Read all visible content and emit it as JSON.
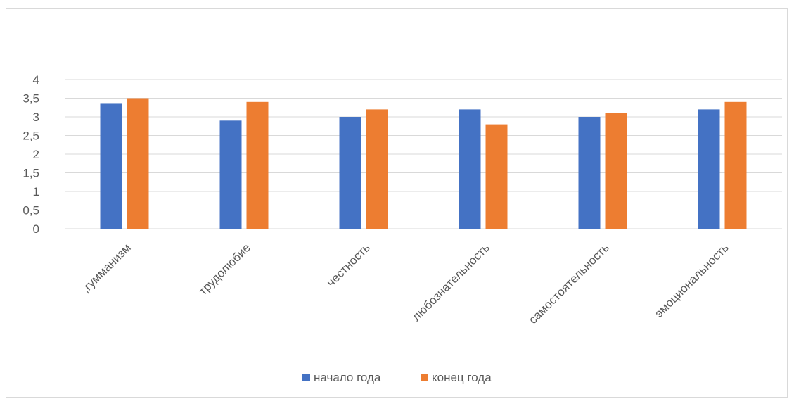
{
  "chart_data": {
    "type": "bar",
    "title": "",
    "xlabel": "",
    "ylabel": "",
    "categories": [
      ",гумманизм",
      "трудолюбие",
      "честность",
      "любознательность",
      "самостоятельность",
      "эмоциональность"
    ],
    "series": [
      {
        "name": "начало года",
        "color": "#4472c4",
        "values": [
          3.35,
          2.9,
          3.0,
          3.2,
          3.0,
          3.2
        ]
      },
      {
        "name": "конец года",
        "color": "#ed7d31",
        "values": [
          3.5,
          3.4,
          3.2,
          2.8,
          3.1,
          3.4
        ]
      }
    ],
    "ylim": [
      0,
      4
    ],
    "y_ticks": [
      "0",
      "0,5",
      "1",
      "1,5",
      "2",
      "2,5",
      "3",
      "3,5",
      "4"
    ],
    "y_tick_values": [
      0,
      0.5,
      1,
      1.5,
      2,
      2.5,
      3,
      3.5,
      4
    ],
    "grid": true,
    "legend_position": "bottom",
    "gridline_color": "#d9d9d9"
  }
}
